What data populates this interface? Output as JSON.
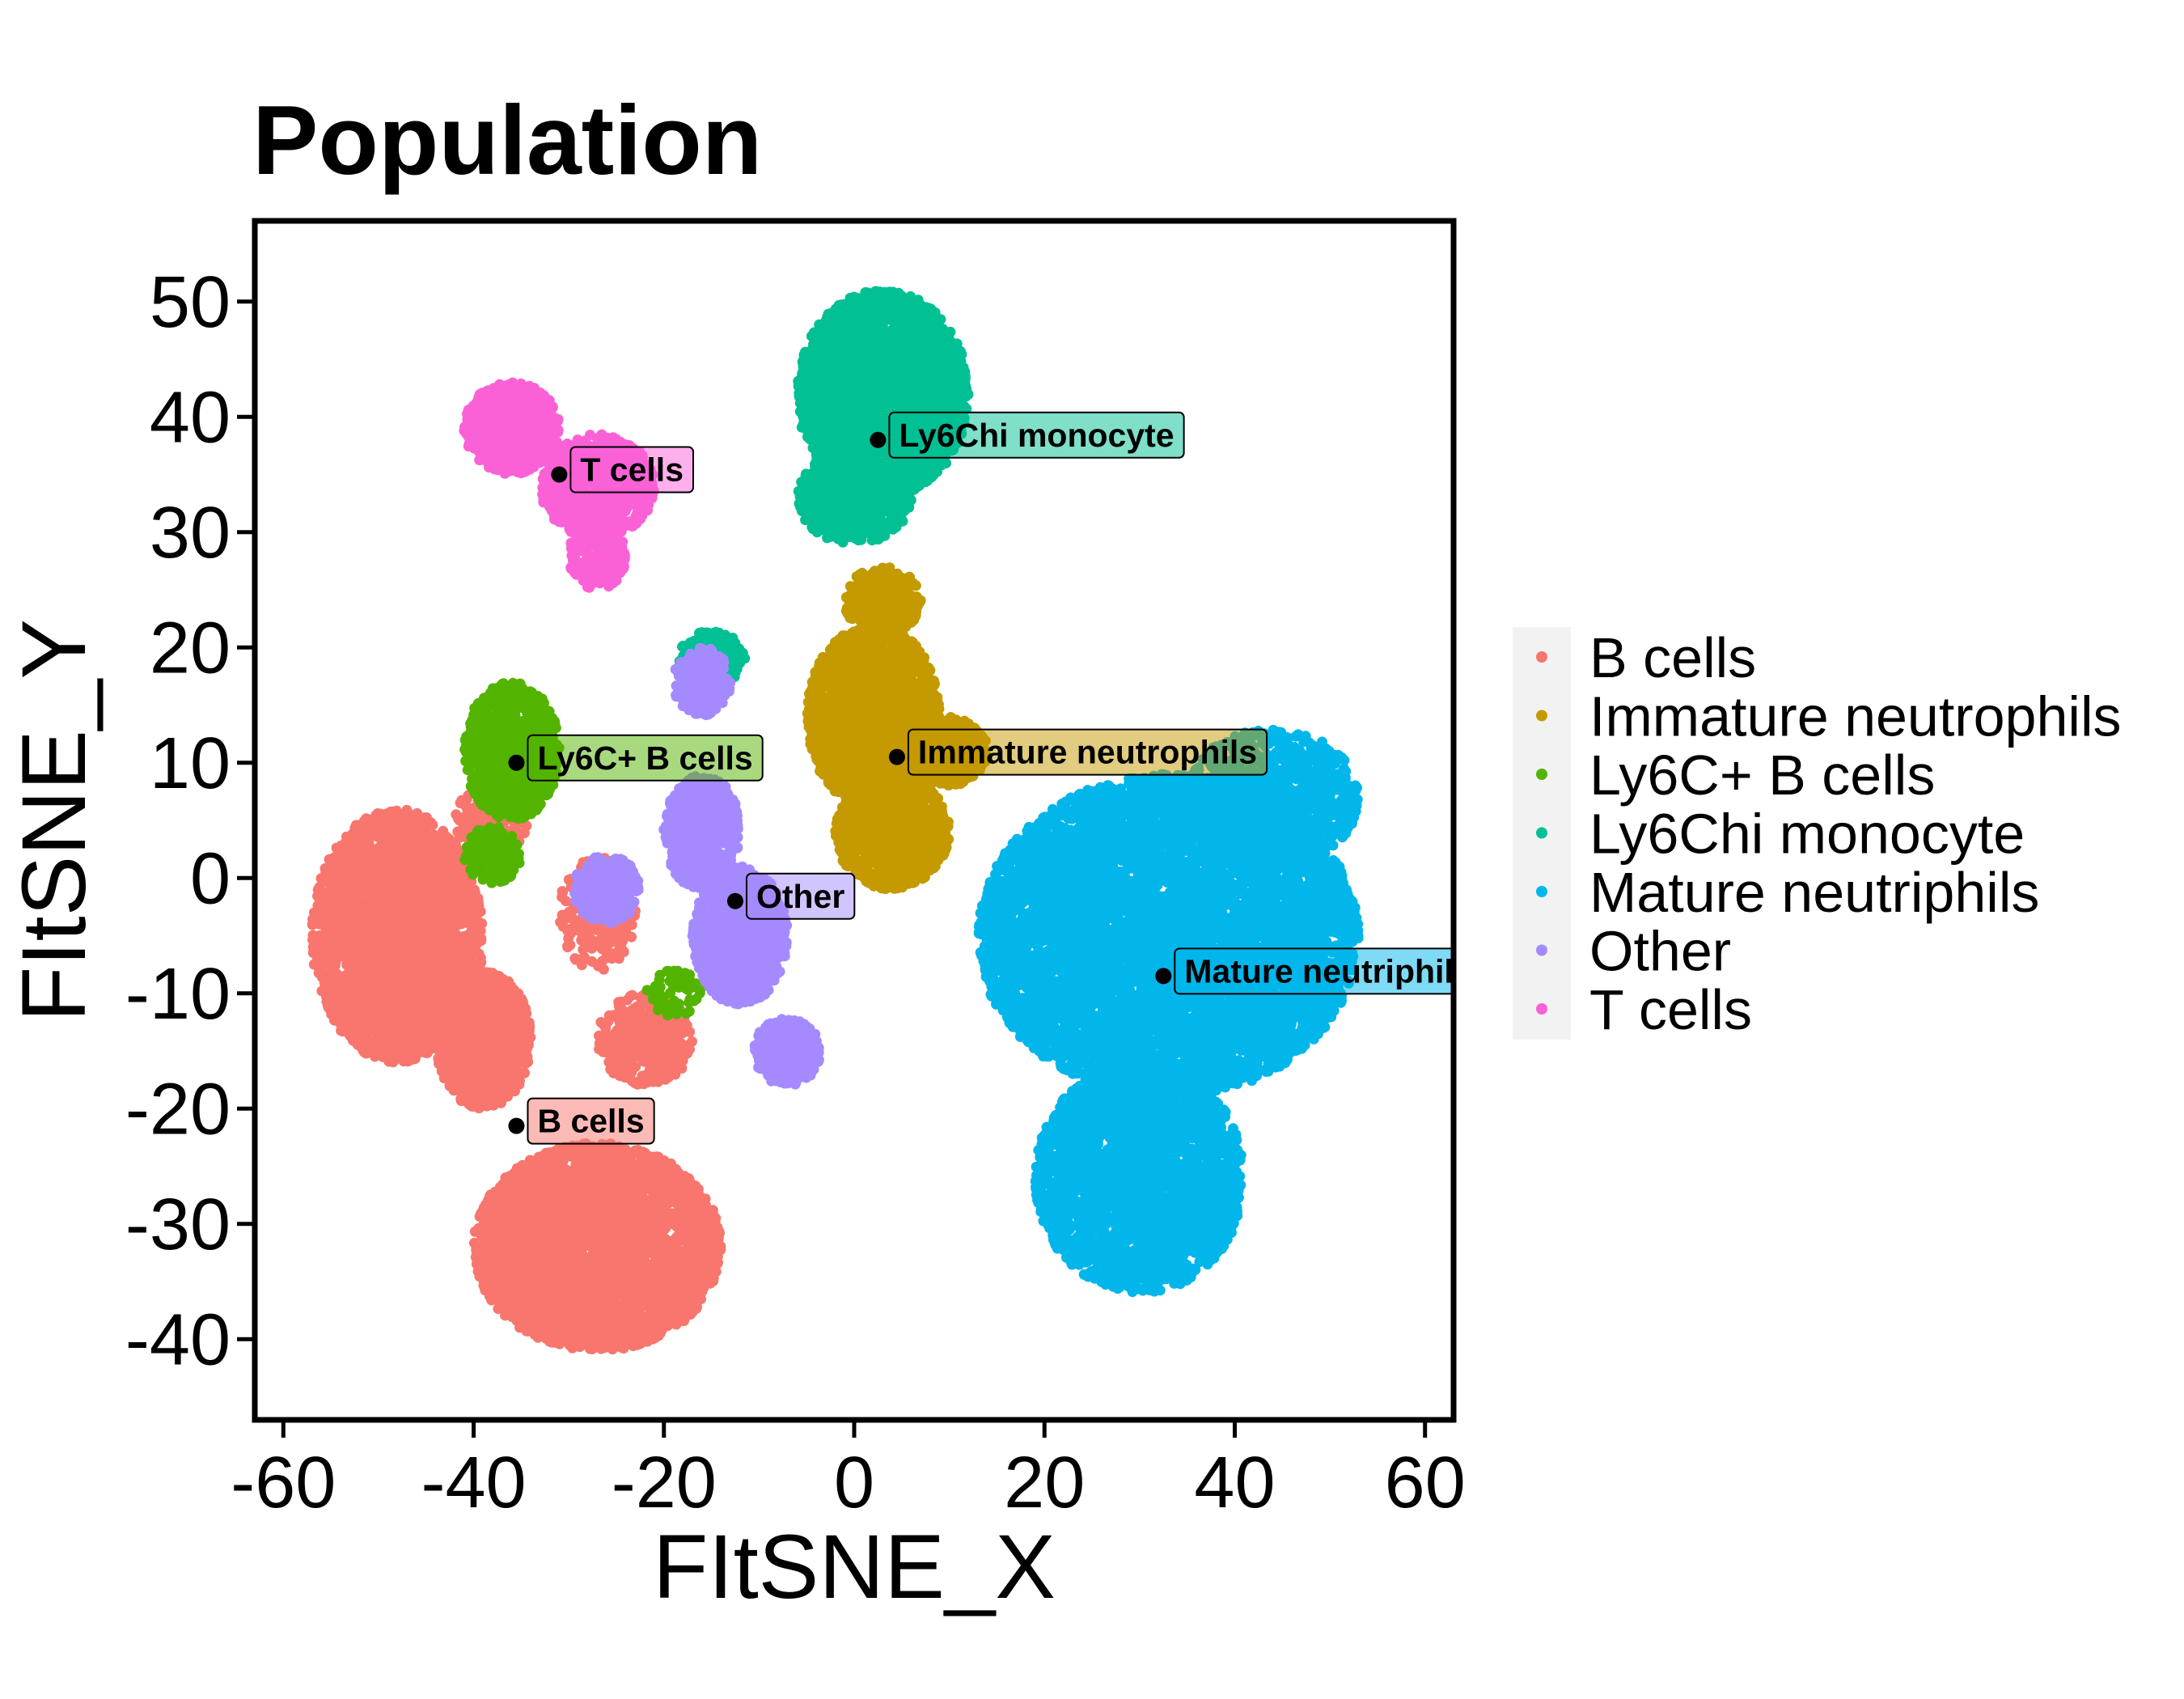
{
  "chart_data": {
    "type": "scatter",
    "title": "Population",
    "xlabel": "FItSNE_X",
    "ylabel": "FItSNE_Y",
    "xlim": [
      -63,
      63
    ],
    "ylim": [
      -47,
      57
    ],
    "x_ticks": [
      -60,
      -40,
      -20,
      0,
      20,
      40,
      60
    ],
    "x_tick_labels": [
      "-60",
      "-40",
      "-20",
      "0",
      "20",
      "40",
      "60"
    ],
    "y_ticks": [
      -40,
      -30,
      -20,
      -10,
      0,
      10,
      20,
      30,
      40,
      50
    ],
    "y_tick_labels": [
      "-40",
      "-30",
      "-20",
      "-10",
      "0",
      "10",
      "20",
      "30",
      "40",
      "50"
    ],
    "grid": false,
    "legend_position": "right",
    "series": [
      {
        "name": "B cells",
        "color": "#F8766D",
        "label": "B cells",
        "label_point": [
          -35.5,
          -21.5
        ],
        "regions": [
          {
            "cx": -27,
            "cy": -32,
            "rx": 13,
            "ry": 9,
            "n": 3200
          },
          {
            "cx": -48,
            "cy": -5,
            "rx": 9,
            "ry": 11,
            "n": 2700
          },
          {
            "cx": -39,
            "cy": -14,
            "rx": 5,
            "ry": 6,
            "n": 900
          },
          {
            "cx": -22,
            "cy": -14,
            "rx": 5,
            "ry": 4,
            "n": 350
          },
          {
            "cx": -27,
            "cy": -3,
            "rx": 4,
            "ry": 5,
            "n": 220
          },
          {
            "cx": -38,
            "cy": 5,
            "rx": 4,
            "ry": 3,
            "n": 200
          }
        ]
      },
      {
        "name": "Immature neutrophils",
        "color": "#C49A00",
        "label": "Immature neutrophils",
        "label_point": [
          4.5,
          10.5
        ],
        "regions": [
          {
            "cx": 2,
            "cy": 14,
            "rx": 7,
            "ry": 8,
            "n": 1800
          },
          {
            "cx": 4,
            "cy": 4,
            "rx": 6,
            "ry": 5,
            "n": 900
          },
          {
            "cx": 10,
            "cy": 11,
            "rx": 4,
            "ry": 3,
            "n": 350
          },
          {
            "cx": 3,
            "cy": 24,
            "rx": 4,
            "ry": 3,
            "n": 250
          }
        ]
      },
      {
        "name": "Ly6C+ B cells",
        "color": "#53B400",
        "label": "Ly6C+ B cells",
        "label_point": [
          -35.5,
          10
        ],
        "regions": [
          {
            "cx": -36,
            "cy": 11,
            "rx": 5,
            "ry": 6,
            "n": 900
          },
          {
            "cx": -38,
            "cy": 2,
            "rx": 3,
            "ry": 2.5,
            "n": 150
          },
          {
            "cx": -19,
            "cy": -10,
            "rx": 3,
            "ry": 2,
            "n": 70
          }
        ]
      },
      {
        "name": "Ly6Chi monocyte",
        "color": "#00C094",
        "label": "Ly6Chi monocyte",
        "label_point": [
          2.5,
          38
        ],
        "regions": [
          {
            "cx": 3,
            "cy": 42,
            "rx": 9,
            "ry": 9,
            "n": 2600
          },
          {
            "cx": 0,
            "cy": 33,
            "rx": 6,
            "ry": 4,
            "n": 600
          },
          {
            "cx": -15,
            "cy": 19,
            "rx": 3.5,
            "ry": 2.5,
            "n": 180
          }
        ]
      },
      {
        "name": "Mature neutriphils",
        "color": "#00B6EB",
        "label": "Mature neutriphils",
        "label_point": [
          32.5,
          -8.5
        ],
        "regions": [
          {
            "cx": 33,
            "cy": -5,
            "rx": 20,
            "ry": 14,
            "n": 6500
          },
          {
            "cx": 30,
            "cy": -26,
            "rx": 11,
            "ry": 10,
            "n": 2500
          },
          {
            "cx": 44,
            "cy": 7,
            "rx": 9,
            "ry": 6,
            "n": 900
          }
        ]
      },
      {
        "name": "Other",
        "color": "#A58AFF",
        "label": "Other",
        "label_point": [
          -12.5,
          -2
        ],
        "regions": [
          {
            "cx": -12,
            "cy": -5,
            "rx": 5,
            "ry": 6,
            "n": 900
          },
          {
            "cx": -16,
            "cy": 4,
            "rx": 4,
            "ry": 5,
            "n": 500
          },
          {
            "cx": -7,
            "cy": -15,
            "rx": 3.5,
            "ry": 3,
            "n": 350
          },
          {
            "cx": -26,
            "cy": -1,
            "rx": 3.5,
            "ry": 3,
            "n": 300
          },
          {
            "cx": -16,
            "cy": 17,
            "rx": 3,
            "ry": 3,
            "n": 180
          }
        ]
      },
      {
        "name": "T cells",
        "color": "#FB61D7",
        "label": "T cells",
        "label_point": [
          -31,
          35
        ],
        "regions": [
          {
            "cx": -36,
            "cy": 39,
            "rx": 5,
            "ry": 4,
            "n": 700
          },
          {
            "cx": -27,
            "cy": 34,
            "rx": 6,
            "ry": 4.5,
            "n": 800
          },
          {
            "cx": -27,
            "cy": 28,
            "rx": 3,
            "ry": 3,
            "n": 200
          }
        ]
      }
    ]
  }
}
